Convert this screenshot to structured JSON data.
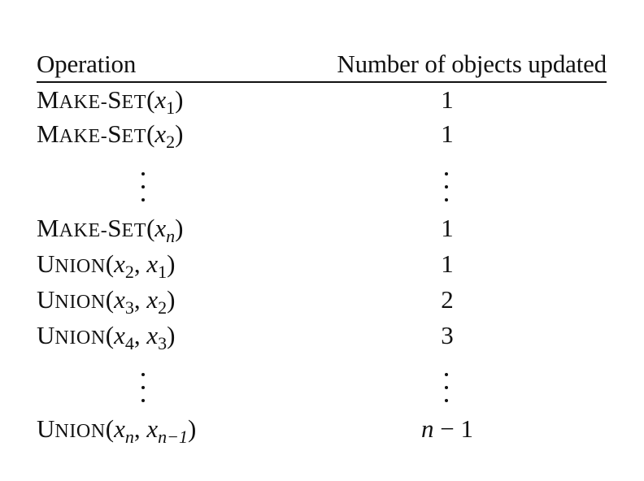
{
  "header": {
    "operation": "Operation",
    "count": "Number of objects updated"
  },
  "rows": [
    {
      "op_name_first": "M",
      "op_name_rest": "AKE-",
      "op_name_first2": "S",
      "op_name_rest2": "ET",
      "arg": "x",
      "sub": "1",
      "count": "1"
    },
    {
      "op_name_first": "M",
      "op_name_rest": "AKE-",
      "op_name_first2": "S",
      "op_name_rest2": "ET",
      "arg": "x",
      "sub": "2",
      "count": "1"
    },
    {
      "op_name_first": "M",
      "op_name_rest": "AKE-",
      "op_name_first2": "S",
      "op_name_rest2": "ET",
      "arg": "x",
      "sub": "n",
      "count": "1"
    },
    {
      "op_name_first": "U",
      "op_name_rest": "NION",
      "a1": "x",
      "s1": "2",
      "a2": "x",
      "s2": "1",
      "count": "1"
    },
    {
      "op_name_first": "U",
      "op_name_rest": "NION",
      "a1": "x",
      "s1": "3",
      "a2": "x",
      "s2": "2",
      "count": "2"
    },
    {
      "op_name_first": "U",
      "op_name_rest": "NION",
      "a1": "x",
      "s1": "4",
      "a2": "x",
      "s2": "3",
      "count": "3"
    },
    {
      "op_name_first": "U",
      "op_name_rest": "NION",
      "a1": "x",
      "s1": "n",
      "a2": "x",
      "s2": "n−1",
      "count_var": "n",
      "count_rest": " − 1"
    }
  ],
  "punct": {
    "open": "(",
    "close": ")",
    "comma": ", "
  }
}
